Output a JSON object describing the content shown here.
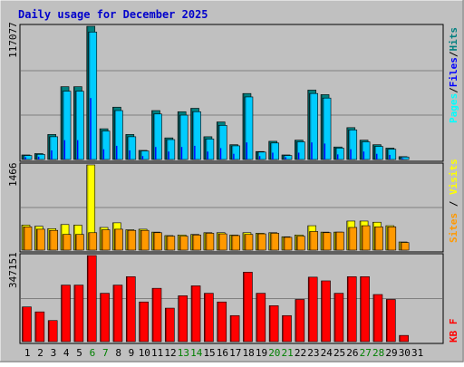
{
  "title": "Daily usage for December 2025",
  "colors": {
    "background": "#c0c0c0",
    "title": "#0000cc",
    "hits": "#00cccc",
    "hits_dark": "#006666",
    "files": "#00a0e0",
    "pages": "#0060ff",
    "visits": "#ffff00",
    "sites": "#ff9900",
    "kbytes": "#ff0000",
    "weekend": "#008000",
    "weekday": "#000000"
  },
  "chart_data": [
    {
      "type": "bar",
      "panel": "traffic",
      "y_tick_label": "117077",
      "ylim": [
        0,
        117077
      ],
      "legend": [
        {
          "label": "Pages",
          "color": "#00ffff"
        },
        {
          "label": "Files",
          "color": "#0000ff"
        },
        {
          "label": "Hits",
          "color": "#008080"
        }
      ],
      "series": [
        {
          "name": "Hits",
          "values": [
            4000,
            5200,
            22000,
            64000,
            64000,
            117077,
            27000,
            46000,
            22000,
            8000,
            43000,
            19000,
            42000,
            45000,
            20000,
            33000,
            13000,
            58000,
            7000,
            16000,
            4000,
            17000,
            61000,
            57000,
            11000,
            28000,
            17000,
            13000,
            10000,
            2500,
            0
          ]
        },
        {
          "name": "Files",
          "values": [
            3500,
            4500,
            20000,
            60000,
            60000,
            112000,
            25000,
            43000,
            20000,
            7500,
            40000,
            17500,
            39000,
            42000,
            18000,
            30000,
            12000,
            55000,
            6500,
            14500,
            3500,
            15500,
            58000,
            54000,
            10000,
            26000,
            15500,
            11500,
            9000,
            2200,
            0
          ]
        },
        {
          "name": "Pages",
          "values": [
            2000,
            2500,
            8000,
            17000,
            17000,
            54000,
            9000,
            12000,
            8000,
            3000,
            11000,
            7000,
            11000,
            12000,
            7000,
            10000,
            5000,
            15000,
            3000,
            6000,
            2000,
            6000,
            15000,
            14000,
            4500,
            9000,
            7000,
            5000,
            4000,
            1000,
            0
          ]
        }
      ]
    },
    {
      "type": "bar",
      "panel": "visitors",
      "y_tick_label": "1466",
      "ylim": [
        0,
        1466
      ],
      "legend": [
        {
          "label": "Sites",
          "color": "#ff9900"
        },
        {
          "label": "Visits",
          "color": "#ffff00"
        }
      ],
      "series": [
        {
          "name": "Visits",
          "values": [
            430,
            410,
            370,
            440,
            430,
            1466,
            390,
            470,
            350,
            360,
            310,
            250,
            260,
            270,
            300,
            300,
            260,
            300,
            290,
            300,
            230,
            260,
            420,
            310,
            310,
            500,
            500,
            480,
            420,
            140,
            0
          ]
        },
        {
          "name": "Sites",
          "values": [
            400,
            360,
            340,
            270,
            270,
            300,
            350,
            360,
            340,
            340,
            300,
            240,
            240,
            260,
            290,
            280,
            250,
            270,
            280,
            290,
            220,
            240,
            320,
            300,
            310,
            390,
            420,
            400,
            400,
            130,
            0
          ]
        }
      ]
    },
    {
      "type": "bar",
      "panel": "kbytes",
      "y_tick_label": "347151",
      "ylim": [
        0,
        347151
      ],
      "legend": [
        {
          "label": "KB F",
          "color": "#ff0000"
        }
      ],
      "categories": [
        "1",
        "2",
        "3",
        "4",
        "5",
        "6",
        "7",
        "8",
        "9",
        "10",
        "11",
        "12",
        "13",
        "14",
        "15",
        "16",
        "17",
        "18",
        "19",
        "20",
        "21",
        "22",
        "23",
        "24",
        "25",
        "26",
        "27",
        "28",
        "29",
        "30",
        "31"
      ],
      "weekend_days": [
        "6",
        "7",
        "13",
        "14",
        "20",
        "21",
        "27",
        "28"
      ],
      "series": [
        {
          "name": "KB F",
          "values": [
            140000,
            120000,
            85000,
            228000,
            228000,
            347151,
            195000,
            228000,
            262000,
            160000,
            215000,
            135000,
            185000,
            225000,
            195000,
            160000,
            105000,
            280000,
            195000,
            145000,
            105000,
            170000,
            260000,
            245000,
            195000,
            262000,
            262000,
            190000,
            170000,
            25000,
            0
          ]
        }
      ]
    }
  ]
}
